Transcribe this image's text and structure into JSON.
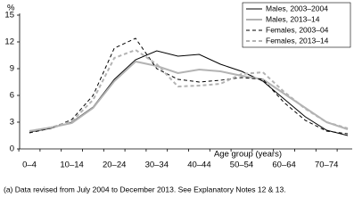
{
  "chart_data": {
    "type": "line",
    "y_axis_label": "%",
    "x_axis_label": "Age group (years)",
    "footnote": "(a) Data revised from July 2004 to December 2013. See Explanatory Notes 12 & 13.",
    "categories": [
      "0–4",
      null,
      "10–14",
      null,
      "20–24",
      null,
      "30–34",
      null,
      "40–44",
      null,
      "50–54",
      null,
      "60–64",
      null,
      "70–74",
      null
    ],
    "ylim": [
      0,
      15
    ],
    "yticks": [
      0,
      3,
      6,
      9,
      12,
      15
    ],
    "legend": "top-right",
    "series": [
      {
        "name": "Males, 2003–2004",
        "color": "#000000",
        "dash": false,
        "values": [
          1.9,
          2.3,
          3.0,
          4.7,
          7.8,
          10.0,
          11.0,
          10.4,
          10.6,
          9.5,
          8.7,
          7.6,
          5.6,
          3.6,
          2.1,
          1.5
        ]
      },
      {
        "name": "Males, 2013–14",
        "color": "#b3b3b3",
        "dash": false,
        "values": [
          2.0,
          2.4,
          2.9,
          4.6,
          7.6,
          9.8,
          9.3,
          8.5,
          8.9,
          8.7,
          8.2,
          7.8,
          6.2,
          4.6,
          3.0,
          2.2
        ]
      },
      {
        "name": "Females, 2003–04",
        "color": "#000000",
        "dash": true,
        "values": [
          1.8,
          2.3,
          3.3,
          6.0,
          11.3,
          12.4,
          9.0,
          7.8,
          7.5,
          7.7,
          8.0,
          7.8,
          5.2,
          3.2,
          2.0,
          1.7
        ]
      },
      {
        "name": "Females, 2013–14",
        "color": "#b3b3b3",
        "dash": true,
        "values": [
          2.0,
          2.4,
          3.1,
          5.5,
          10.2,
          11.1,
          9.5,
          7.0,
          7.1,
          7.3,
          8.4,
          8.6,
          6.4,
          4.5,
          3.0,
          2.3
        ]
      }
    ]
  }
}
